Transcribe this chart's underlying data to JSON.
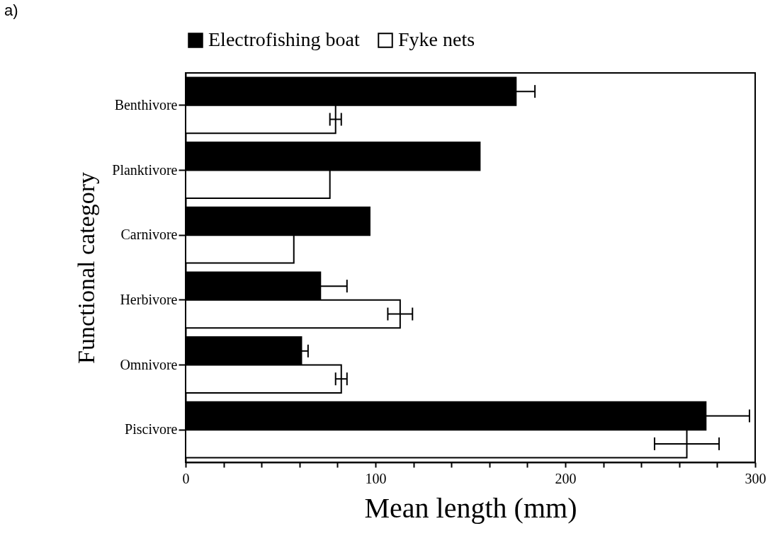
{
  "chart_data": {
    "type": "bar",
    "orientation": "horizontal",
    "xlabel": "Mean length (mm)",
    "ylabel": "Functional category",
    "annotations": [
      "a)"
    ],
    "categories": [
      "Benthivore",
      "Planktivore",
      "Carnivore",
      "Herbivore",
      "Omnivore",
      "Piscivore"
    ],
    "series": [
      {
        "name": "Electrofishing boat",
        "color": "#000000",
        "values": [
          174,
          155,
          97,
          71,
          61,
          274
        ],
        "errors": [
          10,
          null,
          null,
          14,
          3.5,
          23
        ]
      },
      {
        "name": "Fyke nets",
        "color": "#ffffff",
        "values": [
          79,
          76,
          57,
          113,
          82,
          264
        ],
        "errors": [
          3,
          null,
          null,
          6.5,
          3,
          17
        ]
      }
    ],
    "xlim": [
      0,
      300
    ],
    "xticks": [
      0,
      {
        "value": 20,
        "label": null
      },
      {
        "value": 40,
        "label": null
      },
      {
        "value": 60,
        "label": null
      },
      {
        "value": 80,
        "label": null
      },
      100,
      {
        "value": 120,
        "label": null
      },
      {
        "value": 140,
        "label": null
      },
      {
        "value": 160,
        "label": null
      },
      {
        "value": 180,
        "label": null
      },
      200,
      {
        "value": 220,
        "label": null
      },
      {
        "value": 240,
        "label": null
      },
      {
        "value": 260,
        "label": null
      },
      {
        "value": 280,
        "label": null
      },
      300
    ],
    "legend": "top",
    "grid": false
  }
}
